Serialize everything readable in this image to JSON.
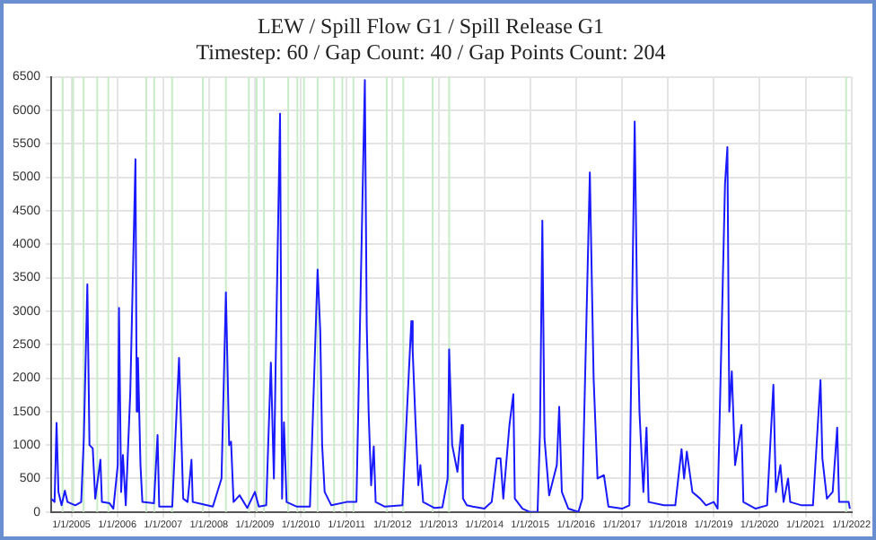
{
  "chart_data": {
    "type": "line",
    "title": "LEW / Spill Flow G1 / Spill Release G1",
    "subtitle": "Timestep: 60 / Gap Count: 40 / Gap Points Count: 204",
    "xlim": [
      "2004-07-25",
      "2022-01-01"
    ],
    "xticks": [
      {
        "value": "2005-01-01",
        "label": "1/1/2005"
      },
      {
        "value": "2006-01-01",
        "label": "1/1/2006"
      },
      {
        "value": "2007-01-01",
        "label": "1/1/2007"
      },
      {
        "value": "2008-01-01",
        "label": "1/1/2008"
      },
      {
        "value": "2009-01-01",
        "label": "1/1/2009"
      },
      {
        "value": "2010-01-01",
        "label": "1/1/2010"
      },
      {
        "value": "2011-01-01",
        "label": "1/1/2011"
      },
      {
        "value": "2012-01-01",
        "label": "1/1/2012"
      },
      {
        "value": "2013-01-01",
        "label": "1/1/2013"
      },
      {
        "value": "2014-01-01",
        "label": "1/1/2014"
      },
      {
        "value": "2015-01-01",
        "label": "1/1/2015"
      },
      {
        "value": "2016-01-01",
        "label": "1/1/2016"
      },
      {
        "value": "2017-01-01",
        "label": "1/1/2017"
      },
      {
        "value": "2018-01-01",
        "label": "1/1/2018"
      },
      {
        "value": "2019-01-01",
        "label": "1/1/2019"
      },
      {
        "value": "2020-01-01",
        "label": "1/1/2020"
      },
      {
        "value": "2021-01-01",
        "label": "1/1/2021"
      },
      {
        "value": "2022-01-01",
        "label": "1/1/2022"
      }
    ],
    "ylim": [
      0,
      6500
    ],
    "yticks": [
      0,
      500,
      1000,
      1500,
      2000,
      2500,
      3000,
      3500,
      4000,
      4500,
      5000,
      5500,
      6000,
      6500
    ],
    "grid": true,
    "legend": false,
    "marker": "none",
    "line_style": "solid",
    "x": [
      "2004-07-25",
      "2004-08-20",
      "2004-09-05",
      "2004-09-20",
      "2004-10-15",
      "2004-11-10",
      "2004-12-01",
      "2005-02-01",
      "2005-03-20",
      "2005-04-10",
      "2005-05-08",
      "2005-05-25",
      "2005-06-20",
      "2005-07-10",
      "2005-08-20",
      "2005-09-01",
      "2005-11-01",
      "2005-12-01",
      "2006-01-05",
      "2006-01-15",
      "2006-02-01",
      "2006-02-15",
      "2006-03-10",
      "2006-04-15",
      "2006-05-26",
      "2006-06-05",
      "2006-06-15",
      "2006-07-05",
      "2006-07-20",
      "2006-10-20",
      "2006-11-18",
      "2006-12-01",
      "2007-03-15",
      "2007-05-08",
      "2007-06-10",
      "2007-07-15",
      "2007-08-15",
      "2007-08-25",
      "2007-11-01",
      "2008-02-01",
      "2008-04-10",
      "2008-05-15",
      "2008-06-10",
      "2008-06-25",
      "2008-07-15",
      "2008-09-01",
      "2008-11-01",
      "2009-01-01",
      "2009-02-01",
      "2009-04-01",
      "2009-05-08",
      "2009-06-01",
      "2009-06-15",
      "2009-07-20",
      "2009-08-05",
      "2009-08-20",
      "2009-09-10",
      "2009-12-01",
      "2010-03-15",
      "2010-05-15",
      "2010-06-05",
      "2010-06-20",
      "2010-07-10",
      "2010-09-01",
      "2011-01-01",
      "2011-03-20",
      "2011-05-26",
      "2011-06-10",
      "2011-06-25",
      "2011-07-15",
      "2011-08-05",
      "2011-08-20",
      "2011-11-01",
      "2012-03-20",
      "2012-05-30",
      "2012-06-10",
      "2012-07-01",
      "2012-07-25",
      "2012-08-10",
      "2012-09-01",
      "2012-12-01",
      "2013-02-01",
      "2013-03-15",
      "2013-03-27",
      "2013-04-20",
      "2013-06-01",
      "2013-07-05",
      "2013-07-15",
      "2013-08-15",
      "2013-10-01",
      "2014-01-01",
      "2014-03-01",
      "2014-04-10",
      "2014-05-10",
      "2014-06-01",
      "2014-07-20",
      "2014-08-20",
      "2014-09-01",
      "2014-11-01",
      "2015-01-01",
      "2015-03-01",
      "2015-03-20",
      "2015-04-08",
      "2015-04-25",
      "2015-06-01",
      "2015-08-01",
      "2015-08-20",
      "2015-09-10",
      "2015-11-01",
      "2016-01-20",
      "2016-02-20",
      "2016-04-20",
      "2016-05-20",
      "2016-06-20",
      "2016-08-10",
      "2016-09-15",
      "2017-01-01",
      "2017-03-01",
      "2017-04-12",
      "2017-05-01",
      "2017-05-20",
      "2017-06-20",
      "2017-07-15",
      "2017-08-01",
      "2017-12-01",
      "2018-03-01",
      "2018-04-20",
      "2018-05-10",
      "2018-06-01",
      "2018-07-15",
      "2018-09-15",
      "2018-11-01",
      "2019-01-01",
      "2019-02-01",
      "2019-04-01",
      "2019-04-20",
      "2019-05-05",
      "2019-05-25",
      "2019-06-20",
      "2019-08-10",
      "2019-08-25",
      "2019-12-01",
      "2020-03-01",
      "2020-04-20",
      "2020-05-10",
      "2020-06-15",
      "2020-07-10",
      "2020-08-15",
      "2020-09-01",
      "2020-12-01",
      "2021-03-01",
      "2021-04-30",
      "2021-05-15",
      "2021-06-20",
      "2021-08-05",
      "2021-09-10",
      "2021-09-25",
      "2021-12-10",
      "2021-12-20"
    ],
    "series": [
      {
        "color": "#1a1aff",
        "values": [
          200,
          150,
          1330,
          300,
          100,
          320,
          150,
          100,
          150,
          1100,
          3400,
          1000,
          950,
          200,
          780,
          150,
          130,
          50,
          700,
          3050,
          300,
          850,
          100,
          1800,
          5270,
          1500,
          2300,
          700,
          150,
          130,
          1150,
          80,
          80,
          2300,
          200,
          150,
          780,
          150,
          120,
          80,
          500,
          3280,
          1000,
          1050,
          150,
          250,
          60,
          300,
          80,
          100,
          2230,
          500,
          2200,
          5950,
          200,
          1340,
          150,
          80,
          80,
          3620,
          2700,
          1000,
          300,
          100,
          150,
          150,
          6450,
          2800,
          1500,
          400,
          980,
          150,
          80,
          100,
          2850,
          2400,
          1400,
          400,
          700,
          150,
          60,
          70,
          500,
          2430,
          1000,
          600,
          1300,
          200,
          100,
          80,
          50,
          150,
          800,
          800,
          200,
          1300,
          1760,
          200,
          50,
          0,
          0,
          1200,
          4350,
          1100,
          250,
          700,
          1570,
          300,
          50,
          0,
          200,
          5070,
          2000,
          500,
          550,
          80,
          50,
          100,
          5830,
          3100,
          1500,
          300,
          1260,
          150,
          100,
          100,
          940,
          500,
          900,
          300,
          200,
          100,
          150,
          50,
          4900,
          5450,
          1500,
          2100,
          700,
          1300,
          150,
          50,
          100,
          1900,
          300,
          700,
          150,
          500,
          150,
          100,
          100,
          1970,
          800,
          200,
          300,
          1260,
          150,
          150,
          50
        ]
      }
    ],
    "ref_lines": [
      {
        "axis": "x",
        "value": "2004-10-23",
        "color": "#c8ecc8"
      },
      {
        "axis": "x",
        "value": "2005-01-15",
        "color": "#c8ecc8"
      },
      {
        "axis": "x",
        "value": "2005-04-08",
        "color": "#c8ecc8"
      },
      {
        "axis": "x",
        "value": "2005-07-26",
        "color": "#c8ecc8"
      },
      {
        "axis": "x",
        "value": "2005-10-22",
        "color": "#c8ecc8"
      },
      {
        "axis": "x",
        "value": "2006-08-20",
        "color": "#c8ecc8"
      },
      {
        "axis": "x",
        "value": "2006-10-22",
        "color": "#c8ecc8"
      },
      {
        "axis": "x",
        "value": "2007-03-14",
        "color": "#c8ecc8"
      },
      {
        "axis": "x",
        "value": "2007-11-14",
        "color": "#c8ecc8"
      },
      {
        "axis": "x",
        "value": "2008-05-15",
        "color": "#c8ecc8"
      },
      {
        "axis": "x",
        "value": "2008-11-14",
        "color": "#c8ecc8"
      },
      {
        "axis": "x",
        "value": "2009-01-15",
        "color": "#c8ecc8"
      },
      {
        "axis": "x",
        "value": "2009-03-14",
        "color": "#c8ecc8"
      },
      {
        "axis": "x",
        "value": "2009-09-23",
        "color": "#c8ecc8"
      },
      {
        "axis": "x",
        "value": "2009-12-05",
        "color": "#c8ecc8"
      },
      {
        "axis": "x",
        "value": "2010-01-26",
        "color": "#c8ecc8"
      },
      {
        "axis": "x",
        "value": "2010-05-15",
        "color": "#c8ecc8"
      },
      {
        "axis": "x",
        "value": "2010-09-23",
        "color": "#c8ecc8"
      },
      {
        "axis": "x",
        "value": "2010-11-28",
        "color": "#c8ecc8"
      },
      {
        "axis": "x",
        "value": "2011-02-24",
        "color": "#c8ecc8"
      },
      {
        "axis": "x",
        "value": "2011-11-16",
        "color": "#c8ecc8"
      },
      {
        "axis": "x",
        "value": "2012-03-27",
        "color": "#c8ecc8"
      },
      {
        "axis": "x",
        "value": "2012-11-16",
        "color": "#c8ecc8"
      },
      {
        "axis": "x",
        "value": "2013-03-27",
        "color": "#c8ecc8"
      },
      {
        "axis": "x",
        "value": "2021-11-20",
        "color": "#c8ecc8"
      }
    ]
  }
}
